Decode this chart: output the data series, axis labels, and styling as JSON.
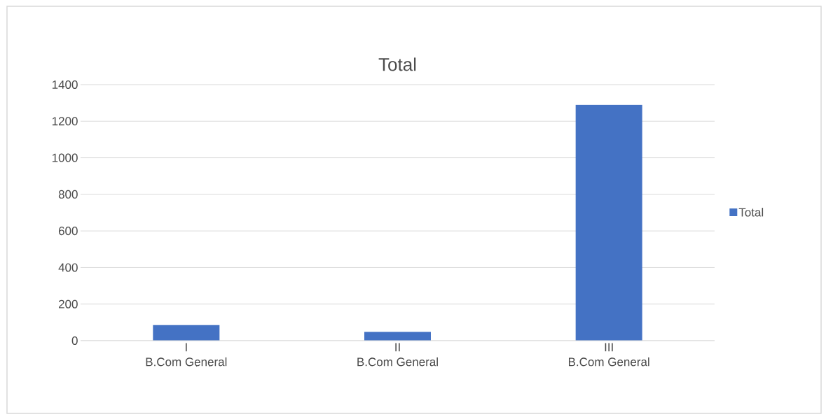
{
  "chart_data": {
    "type": "bar",
    "title": "Total",
    "categories": [
      "I\nB.Com General",
      "II\nB.Com General",
      "III\nB.Com General"
    ],
    "series": [
      {
        "name": "Total",
        "color": "#4472c4",
        "values": [
          85,
          48,
          1290
        ]
      }
    ],
    "ylim": [
      0,
      1400
    ],
    "yticks": [
      0,
      200,
      400,
      600,
      800,
      1000,
      1200,
      1400
    ],
    "grid": "y",
    "legend": "right"
  }
}
